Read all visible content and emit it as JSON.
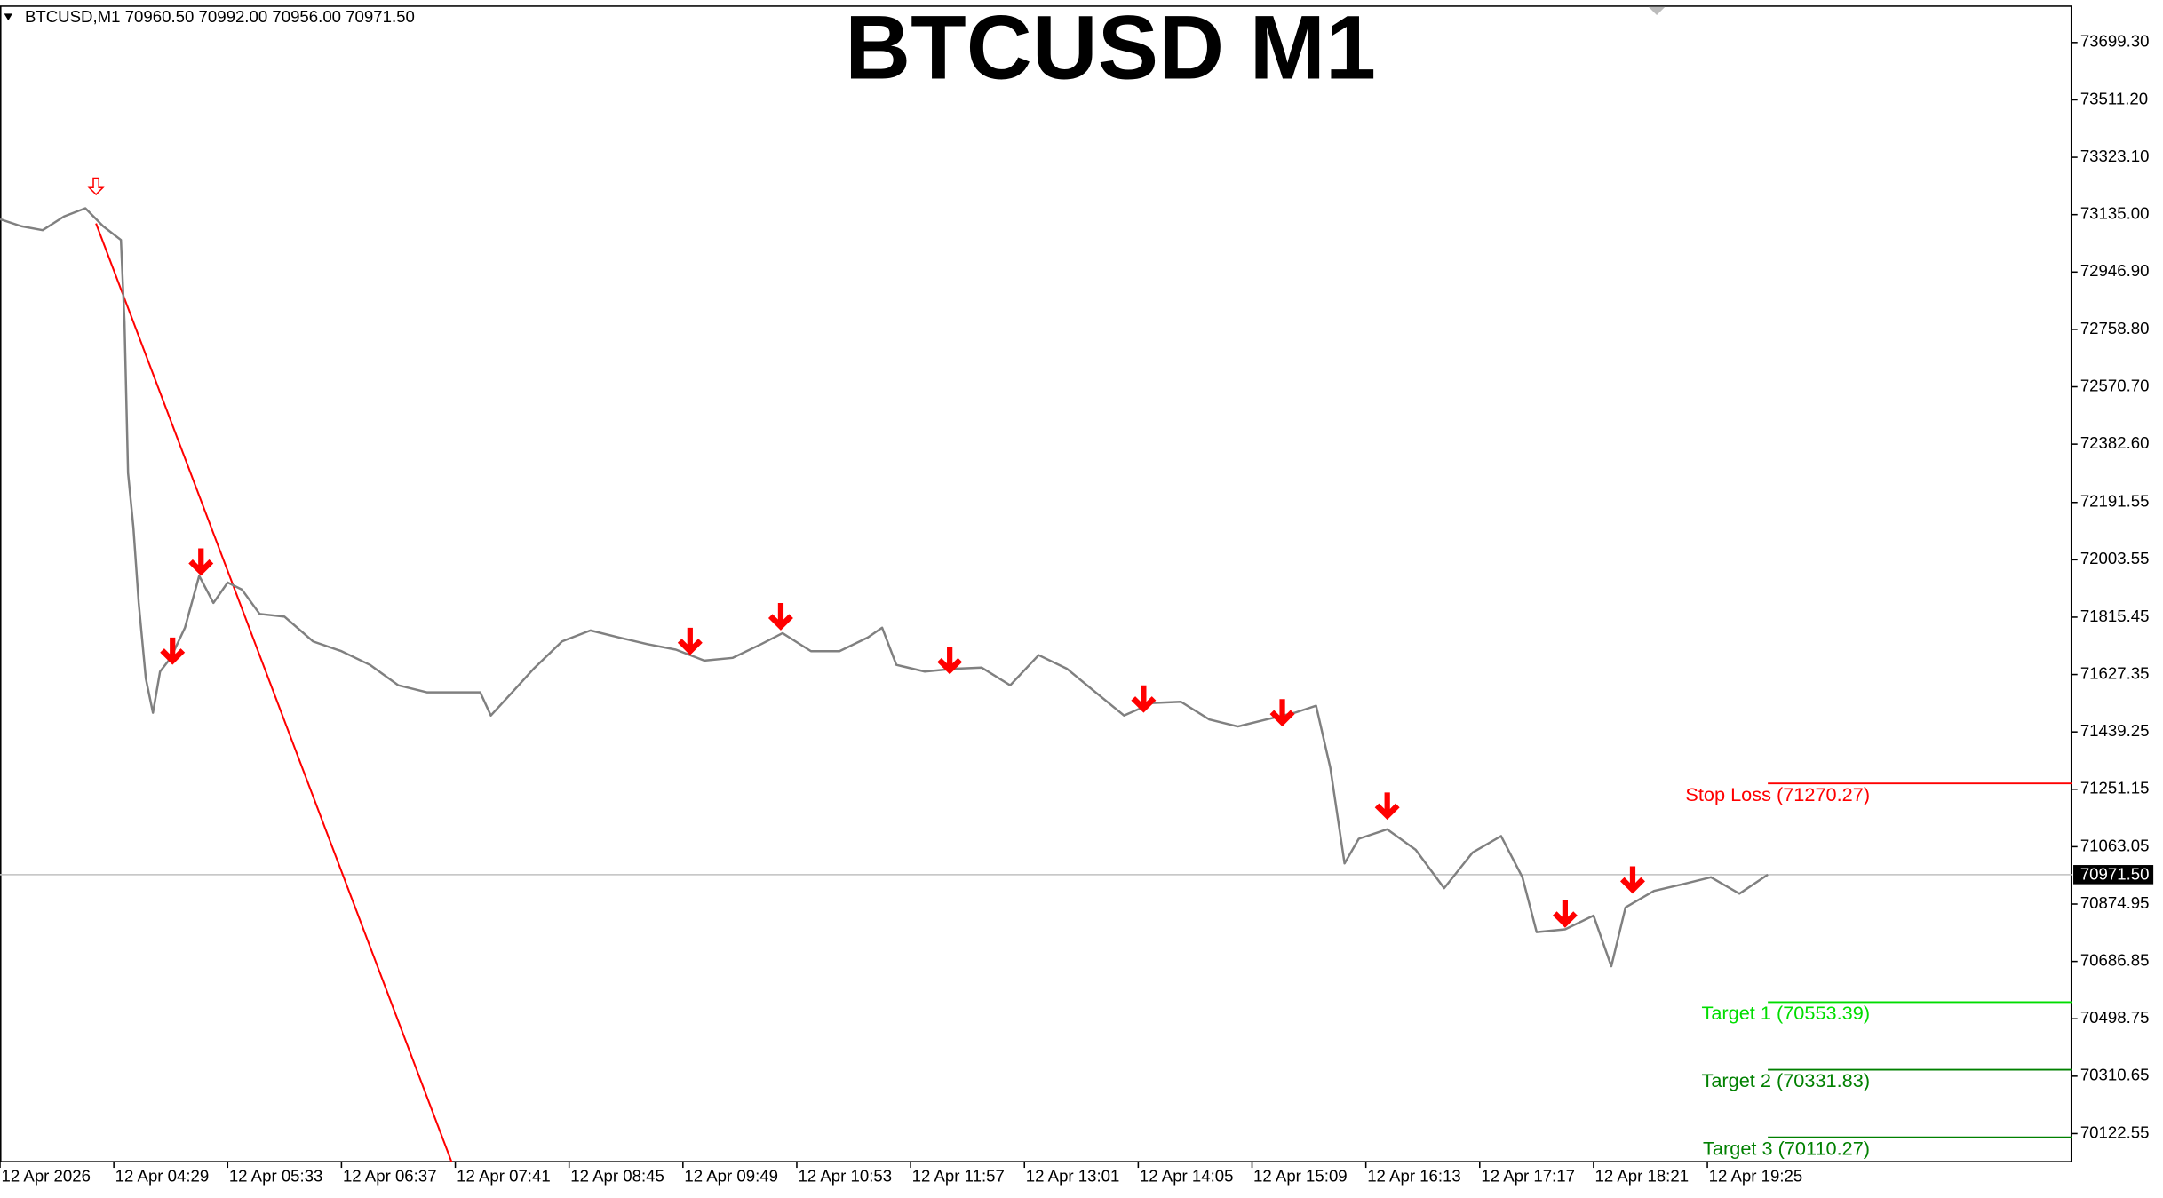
{
  "chart_data": {
    "type": "line",
    "title": "BTCUSD M1",
    "header": "BTCUSD,M1  70960.50 70992.00 70956.00 70971.50",
    "color": "#808080",
    "x": [
      "12 Apr 03:25",
      "12 Apr 03:37",
      "12 Apr 03:49",
      "12 Apr 04:01",
      "12 Apr 04:13",
      "12 Apr 04:23",
      "12 Apr 04:33",
      "12 Apr 04:35",
      "12 Apr 04:37",
      "12 Apr 04:40",
      "12 Apr 04:43",
      "12 Apr 04:47",
      "12 Apr 04:51",
      "12 Apr 04:55",
      "12 Apr 05:01",
      "12 Apr 05:09",
      "12 Apr 05:17",
      "12 Apr 05:25",
      "12 Apr 05:33",
      "12 Apr 05:41",
      "12 Apr 05:51",
      "12 Apr 06:05",
      "12 Apr 06:21",
      "12 Apr 06:37",
      "12 Apr 06:53",
      "12 Apr 07:09",
      "12 Apr 07:25",
      "12 Apr 07:41",
      "12 Apr 07:55",
      "12 Apr 08:01",
      "12 Apr 08:13",
      "12 Apr 08:25",
      "12 Apr 08:41",
      "12 Apr 08:57",
      "12 Apr 09:13",
      "12 Apr 09:29",
      "12 Apr 09:45",
      "12 Apr 10:01",
      "12 Apr 10:17",
      "12 Apr 10:33",
      "12 Apr 10:45",
      "12 Apr 11:01",
      "12 Apr 11:17",
      "12 Apr 11:33",
      "12 Apr 11:41",
      "12 Apr 11:49",
      "12 Apr 12:05",
      "12 Apr 12:21",
      "12 Apr 12:37",
      "12 Apr 12:53",
      "12 Apr 13:09",
      "12 Apr 13:25",
      "12 Apr 13:41",
      "12 Apr 13:57",
      "12 Apr 14:13",
      "12 Apr 14:29",
      "12 Apr 14:45",
      "12 Apr 15:01",
      "12 Apr 15:17",
      "12 Apr 15:33",
      "12 Apr 15:45",
      "12 Apr 15:53",
      "12 Apr 16:01",
      "12 Apr 16:09",
      "12 Apr 16:25",
      "12 Apr 16:41",
      "12 Apr 16:57",
      "12 Apr 17:13",
      "12 Apr 17:29",
      "12 Apr 17:41",
      "12 Apr 17:49",
      "12 Apr 18:05",
      "12 Apr 18:21",
      "12 Apr 18:31",
      "12 Apr 18:39",
      "12 Apr 18:55",
      "12 Apr 19:11",
      "12 Apr 19:27",
      "12 Apr 19:43",
      "12 Apr 19:59"
    ],
    "values": [
      73120,
      73097,
      73084,
      73129,
      73156,
      73097,
      73052,
      72783,
      72288,
      72109,
      71862,
      71614,
      71502,
      71637,
      71682,
      71781,
      71951,
      71862,
      71929,
      71906,
      71826,
      71817,
      71736,
      71704,
      71659,
      71592,
      71569,
      71569,
      71569,
      71493,
      71569,
      71646,
      71736,
      71772,
      71749,
      71727,
      71709,
      71673,
      71682,
      71727,
      71763,
      71704,
      71704,
      71749,
      71781,
      71659,
      71637,
      71646,
      71650,
      71592,
      71691,
      71646,
      71569,
      71493,
      71534,
      71538,
      71480,
      71457,
      71480,
      71502,
      71525,
      71322,
      71008,
      71089,
      71120,
      71053,
      70927,
      71044,
      71098,
      70963,
      70783,
      70792,
      70837,
      70671,
      70864,
      70918,
      70940,
      70963,
      70909,
      70971.5
    ],
    "xlim": [
      "12 Apr 03:25",
      "12 Apr 22:50"
    ],
    "xticks": [
      {
        "value": "12 Apr 03:25",
        "label": "12 Apr 2026"
      },
      "12 Apr 04:29",
      "12 Apr 05:33",
      "12 Apr 06:37",
      "12 Apr 07:41",
      "12 Apr 08:45",
      "12 Apr 09:49",
      "12 Apr 10:53",
      "12 Apr 11:57",
      "12 Apr 13:01",
      "12 Apr 14:05",
      "12 Apr 15:09",
      "12 Apr 16:13",
      "12 Apr 17:17",
      "12 Apr 18:21",
      "12 Apr 19:25"
    ],
    "ylim": [
      70028.2,
      73820.6
    ],
    "yticks": [
      {
        "value": 73699.3,
        "label": "73699.30"
      },
      {
        "value": 73511.2,
        "label": "73511.20"
      },
      {
        "value": 73323.1,
        "label": "73323.10"
      },
      {
        "value": 73135,
        "label": "73135.00"
      },
      {
        "value": 72946.9,
        "label": "72946.90"
      },
      {
        "value": 72758.8,
        "label": "72758.80"
      },
      {
        "value": 72570.7,
        "label": "72570.70"
      },
      {
        "value": 72382.6,
        "label": "72382.60"
      },
      72191.55,
      72003.55,
      71815.45,
      71627.35,
      71439.25,
      71251.15,
      71063.05,
      70874.95,
      70686.85,
      70498.75,
      70310.65,
      70122.55
    ],
    "current_price": {
      "value": 70971.5,
      "label": "70971.50"
    },
    "levels": [
      {
        "label": "Stop Loss (71270.27)",
        "value": 71270.27,
        "color": "#ff0000"
      },
      {
        "label": "Target 1 (70553.39)",
        "value": 70553.39,
        "color": "#00dd00"
      },
      {
        "label": "Target 2 (70331.83)",
        "value": 70331.83,
        "color": "#008000"
      },
      {
        "label": "Target 3 (70110.27)",
        "value": 70110.27,
        "color": "#008000"
      }
    ],
    "trendline": {
      "x": [
        "12 Apr 04:19",
        "12 Apr 07:39"
      ],
      "values": [
        73106,
        70028.2
      ],
      "color": "#ff0000"
    },
    "sell_signals": {
      "x": [
        "12 Apr 05:02",
        "12 Apr 05:18",
        "12 Apr 09:53",
        "12 Apr 10:44",
        "12 Apr 12:19",
        "12 Apr 14:08",
        "12 Apr 15:26",
        "12 Apr 16:25",
        "12 Apr 18:05",
        "12 Apr 18:43"
      ],
      "values": [
        71659,
        71951,
        71691,
        71772,
        71628,
        71502,
        71457,
        71151,
        70797,
        70909
      ],
      "color": "#ff0000"
    },
    "signal_marker": {
      "x": "12 Apr 04:19",
      "value": 73201,
      "color": "#ff0000"
    }
  }
}
